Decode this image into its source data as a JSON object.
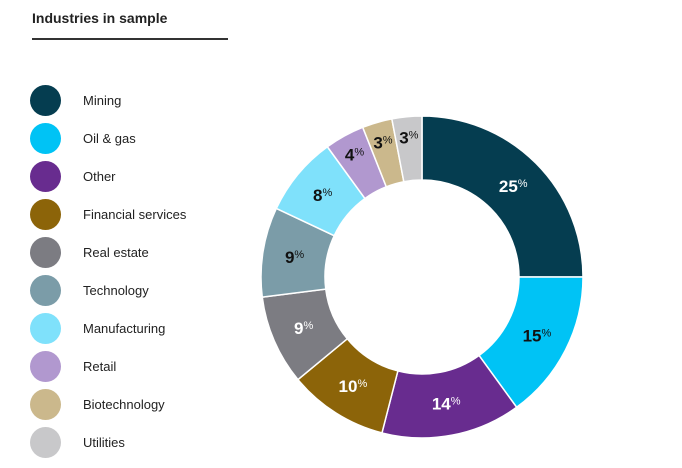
{
  "chart_data": {
    "type": "pie",
    "variant": "donut",
    "title": "Industries in sample",
    "unit": "%",
    "legend_position": "left",
    "categories": [
      "Mining",
      "Oil & gas",
      "Other",
      "Financial services",
      "Real estate",
      "Technology",
      "Manufacturing",
      "Retail",
      "Biotechnology",
      "Utilities"
    ],
    "values": [
      25,
      15,
      14,
      10,
      9,
      9,
      8,
      4,
      3,
      3
    ],
    "colors": [
      "#053d50",
      "#00c3f5",
      "#682c8f",
      "#8c6409",
      "#7c7c82",
      "#7b9ca8",
      "#7fe1fb",
      "#b198cf",
      "#cbb88c",
      "#c8c8ca"
    ],
    "label_colors": [
      "#ffffff",
      "#111111",
      "#ffffff",
      "#ffffff",
      "#ffffff",
      "#111111",
      "#111111",
      "#111111",
      "#111111",
      "#111111"
    ]
  }
}
